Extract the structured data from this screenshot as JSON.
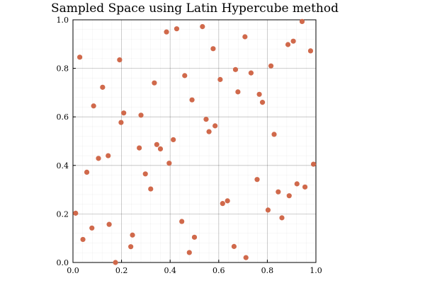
{
  "chart_data": {
    "type": "scatter",
    "title": "Sampled Space using Latin Hypercube method",
    "xlabel": "",
    "ylabel": "",
    "xlim": [
      0,
      1
    ],
    "ylim": [
      0,
      1
    ],
    "grid": true,
    "minor_grid": true,
    "legend": "none",
    "marker_color": "#d0694b",
    "x_ticks": [
      "0.0",
      "0.2",
      "0.4",
      "0.6",
      "0.8",
      "1.0"
    ],
    "y_ticks": [
      "0.0",
      "0.2",
      "0.4",
      "0.6",
      "0.8",
      "1.0"
    ],
    "points": [
      [
        0.011,
        0.203
      ],
      [
        0.028,
        0.846
      ],
      [
        0.041,
        0.095
      ],
      [
        0.057,
        0.372
      ],
      [
        0.078,
        0.142
      ],
      [
        0.085,
        0.645
      ],
      [
        0.105,
        0.429
      ],
      [
        0.122,
        0.722
      ],
      [
        0.145,
        0.44
      ],
      [
        0.149,
        0.157
      ],
      [
        0.175,
        0.0
      ],
      [
        0.192,
        0.835
      ],
      [
        0.198,
        0.577
      ],
      [
        0.209,
        0.616
      ],
      [
        0.238,
        0.065
      ],
      [
        0.245,
        0.113
      ],
      [
        0.273,
        0.472
      ],
      [
        0.28,
        0.607
      ],
      [
        0.298,
        0.365
      ],
      [
        0.32,
        0.303
      ],
      [
        0.335,
        0.74
      ],
      [
        0.345,
        0.486
      ],
      [
        0.36,
        0.468
      ],
      [
        0.385,
        0.95
      ],
      [
        0.396,
        0.409
      ],
      [
        0.413,
        0.506
      ],
      [
        0.427,
        0.963
      ],
      [
        0.448,
        0.169
      ],
      [
        0.46,
        0.77
      ],
      [
        0.479,
        0.041
      ],
      [
        0.49,
        0.67
      ],
      [
        0.5,
        0.104
      ],
      [
        0.533,
        0.972
      ],
      [
        0.548,
        0.59
      ],
      [
        0.56,
        0.539
      ],
      [
        0.577,
        0.881
      ],
      [
        0.585,
        0.563
      ],
      [
        0.606,
        0.754
      ],
      [
        0.616,
        0.243
      ],
      [
        0.636,
        0.254
      ],
      [
        0.663,
        0.066
      ],
      [
        0.669,
        0.795
      ],
      [
        0.679,
        0.703
      ],
      [
        0.708,
        0.93
      ],
      [
        0.712,
        0.02
      ],
      [
        0.733,
        0.781
      ],
      [
        0.758,
        0.342
      ],
      [
        0.767,
        0.693
      ],
      [
        0.78,
        0.66
      ],
      [
        0.803,
        0.216
      ],
      [
        0.815,
        0.81
      ],
      [
        0.828,
        0.528
      ],
      [
        0.845,
        0.291
      ],
      [
        0.86,
        0.184
      ],
      [
        0.885,
        0.898
      ],
      [
        0.89,
        0.275
      ],
      [
        0.907,
        0.912
      ],
      [
        0.922,
        0.324
      ],
      [
        0.943,
        0.993
      ],
      [
        0.955,
        0.311
      ],
      [
        0.978,
        0.872
      ],
      [
        0.99,
        0.405
      ]
    ]
  }
}
